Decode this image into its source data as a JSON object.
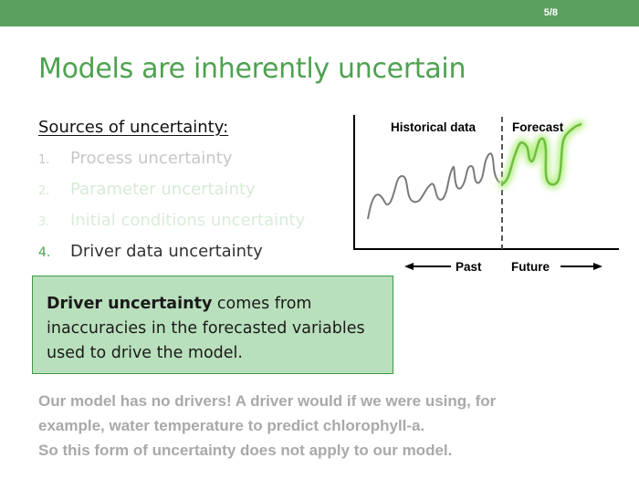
{
  "slide": {
    "page_number": "5/8",
    "title": "Models are inherently uncertain",
    "sources_heading": "Sources of uncertainty:",
    "sources": [
      {
        "number": "1.",
        "label": "Process uncertainty",
        "color": "#c7c7c7"
      },
      {
        "number": "2.",
        "label": "Parameter uncertainty",
        "color": "#d6ead5"
      },
      {
        "number": "3.",
        "label": "Initial conditions uncertainty",
        "color": "#d9ecd8"
      },
      {
        "number": "4.",
        "label": "Driver data uncertainty",
        "color": "#333333"
      }
    ],
    "callout": {
      "bold": "Driver uncertainty",
      "text": " comes from inaccuracies in the forecasted variables used to drive the model."
    },
    "note_lines": [
      "Our model has no drivers! A driver would if we were using, for",
      "example, water temperature to predict chlorophyll-a.",
      "So this form of uncertainty does not apply to our model."
    ]
  },
  "diagram": {
    "historical_label": "Historical data",
    "forecast_label": "Forecast",
    "past_label": "Past",
    "future_label": "Future",
    "colors": {
      "historical": "#7a7a7a",
      "forecast": "#6fbf3f",
      "glow": "#b8f08a",
      "axis": "#000000"
    }
  },
  "theme": {
    "accent": "#5ba05f",
    "title": "#4ea24f",
    "callout_bg": "#b9e0bc",
    "callout_border": "#3f9a45"
  }
}
